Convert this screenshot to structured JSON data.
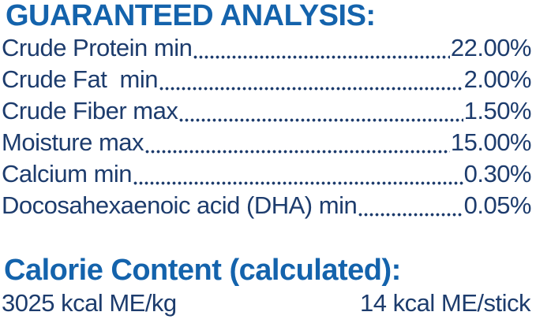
{
  "colors": {
    "heading_blue": "#1463ac",
    "body_navy": "#1d3c6d"
  },
  "guaranteed_analysis": {
    "heading": "GUARANTEED ANALYSIS:",
    "rows": [
      {
        "label": "Crude Protein min",
        "value": "22.00%"
      },
      {
        "label": "Crude Fat  min",
        "value": "2.00%"
      },
      {
        "label": "Crude Fiber max",
        "value": "1.50%"
      },
      {
        "label": "Moisture max",
        "value": "15.00%"
      },
      {
        "label": "Calcium min",
        "value": "0.30%"
      },
      {
        "label": "Docosahexaenoic acid (DHA) min",
        "value": "0.05%"
      }
    ]
  },
  "calorie_content": {
    "heading": "Calorie Content (calculated):",
    "per_kg": "3025 kcal ME/kg",
    "per_stick": "14 kcal ME/stick"
  }
}
